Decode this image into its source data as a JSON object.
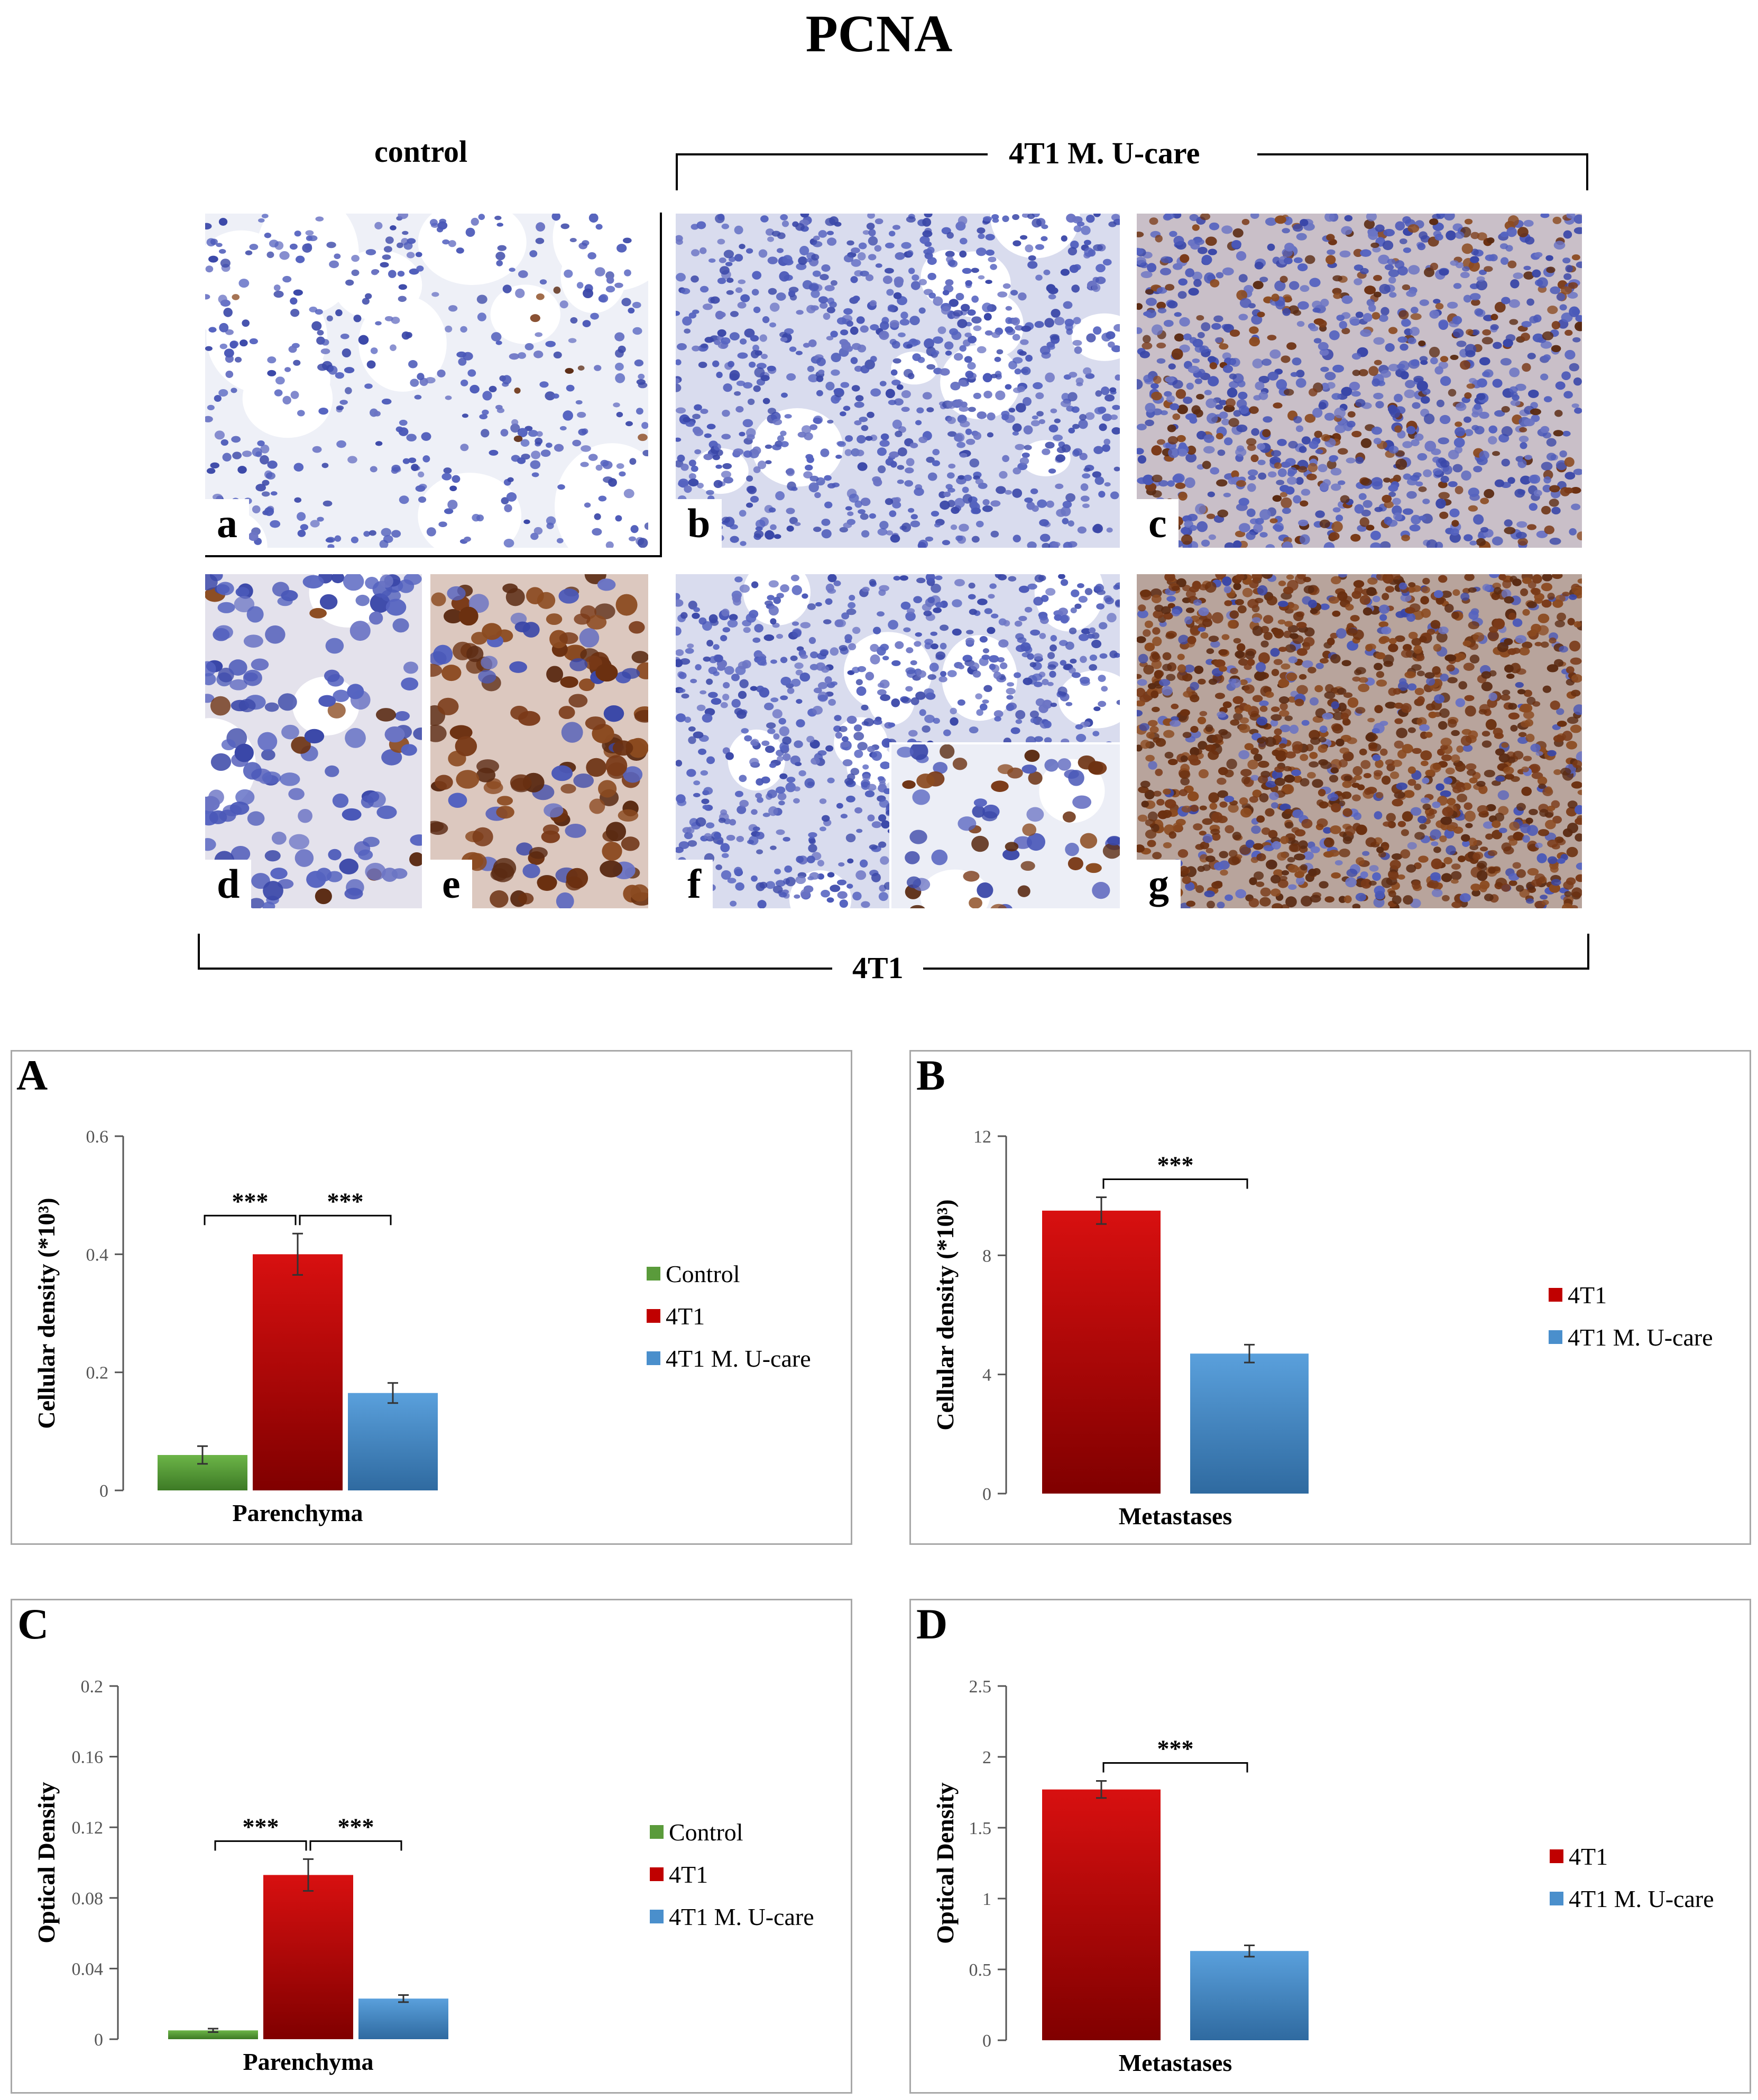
{
  "figure": {
    "title": "PCNA",
    "groups": {
      "control": "control",
      "ucare": "4T1 M. U-care",
      "tumor": "4T1"
    },
    "micrographs": [
      {
        "label": "a",
        "stain": "light"
      },
      {
        "label": "b",
        "stain": "dense-blue"
      },
      {
        "label": "c",
        "stain": "mixed"
      },
      {
        "label": "d",
        "stain": "closeup-light"
      },
      {
        "label": "e",
        "stain": "closeup-brown"
      },
      {
        "label": "f",
        "stain": "dense-blue"
      },
      {
        "label": "g",
        "stain": "dense-brown"
      }
    ]
  },
  "colors": {
    "control": "#5a9b3b",
    "tumor": "#c00000",
    "ucare": "#4a8fcc",
    "axis": "#555555",
    "frame": "#a8a8a8"
  },
  "chart_data": [
    {
      "panel": "A",
      "type": "bar",
      "xlabel": "Parenchyma",
      "ylabel": "Cellular density (*10³)",
      "ylim": [
        0,
        0.6
      ],
      "yticks": [
        "0",
        "0.2",
        "0.4",
        "0.6"
      ],
      "series": [
        {
          "name": "Control",
          "value": 0.06,
          "error": 0.015
        },
        {
          "name": "4T1",
          "value": 0.4,
          "error": 0.035
        },
        {
          "name": "4T1 M. U-care",
          "value": 0.165,
          "error": 0.017
        }
      ],
      "significance": [
        {
          "between": [
            0,
            1
          ],
          "label": "***"
        },
        {
          "between": [
            1,
            2
          ],
          "label": "***"
        }
      ]
    },
    {
      "panel": "B",
      "type": "bar",
      "xlabel": "Metastases",
      "ylabel": "Cellular density (*10³)",
      "ylim": [
        0,
        12
      ],
      "yticks": [
        "0",
        "4",
        "8",
        "12"
      ],
      "series": [
        {
          "name": "4T1",
          "value": 9.5,
          "error": 0.45
        },
        {
          "name": "4T1 M. U-care",
          "value": 4.7,
          "error": 0.3
        }
      ],
      "significance": [
        {
          "between": [
            0,
            1
          ],
          "label": "***"
        }
      ]
    },
    {
      "panel": "C",
      "type": "bar",
      "xlabel": "Parenchyma",
      "ylabel": "Optical Density",
      "ylim": [
        0,
        0.2
      ],
      "yticks": [
        "0",
        "0.04",
        "0.08",
        "0.12",
        "0.16",
        "0.2"
      ],
      "series": [
        {
          "name": "Control",
          "value": 0.005,
          "error": 0.001
        },
        {
          "name": "4T1",
          "value": 0.093,
          "error": 0.009
        },
        {
          "name": "4T1 M. U-care",
          "value": 0.023,
          "error": 0.002
        }
      ],
      "significance": [
        {
          "between": [
            0,
            1
          ],
          "label": "***"
        },
        {
          "between": [
            1,
            2
          ],
          "label": "***"
        }
      ]
    },
    {
      "panel": "D",
      "type": "bar",
      "xlabel": "Metastases",
      "ylabel": "Optical Density",
      "ylim": [
        0,
        2.5
      ],
      "yticks": [
        "0",
        "0.5",
        "1",
        "1.5",
        "2",
        "2.5"
      ],
      "series": [
        {
          "name": "4T1",
          "value": 1.77,
          "error": 0.06
        },
        {
          "name": "4T1 M. U-care",
          "value": 0.63,
          "error": 0.04
        }
      ],
      "significance": [
        {
          "between": [
            0,
            1
          ],
          "label": "***"
        }
      ]
    }
  ]
}
